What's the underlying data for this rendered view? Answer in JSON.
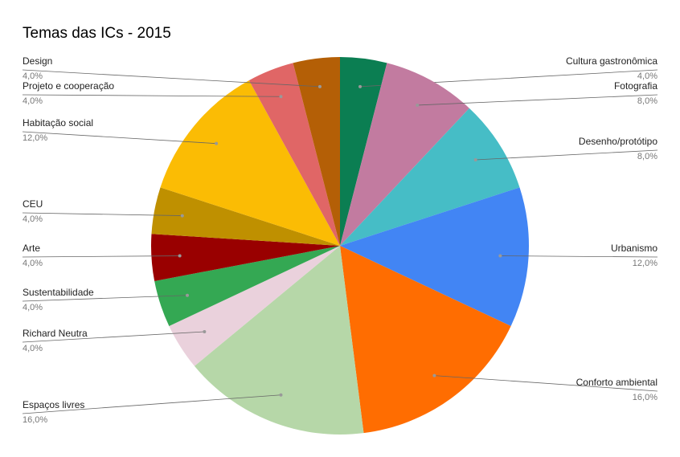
{
  "chart_data": {
    "type": "pie",
    "title": "Temas das ICs - 2015",
    "categories": [
      "Cultura gastronômica",
      "Fotografia",
      "Desenho/protótipo",
      "Urbanismo",
      "Conforto ambiental",
      "Espaços livres",
      "Richard Neutra",
      "Sustentabilidade",
      "Arte",
      "CEU",
      "Habitação social",
      "Projeto e cooperação",
      "Design"
    ],
    "values": [
      4,
      8,
      8,
      12,
      16,
      16,
      4,
      4,
      4,
      4,
      12,
      4,
      4
    ],
    "value_labels": [
      "4,0%",
      "8,0%",
      "8,0%",
      "12,0%",
      "16,0%",
      "16,0%",
      "4,0%",
      "4,0%",
      "4,0%",
      "4,0%",
      "12,0%",
      "4,0%",
      "4,0%"
    ],
    "colors": [
      "#0b7e52",
      "#c27ba0",
      "#46bdc6",
      "#4285f4",
      "#ff6d01",
      "#b6d7a8",
      "#ead1dc",
      "#34a853",
      "#990000",
      "#bf9000",
      "#fbbc04",
      "#e06666",
      "#b45f06"
    ]
  }
}
